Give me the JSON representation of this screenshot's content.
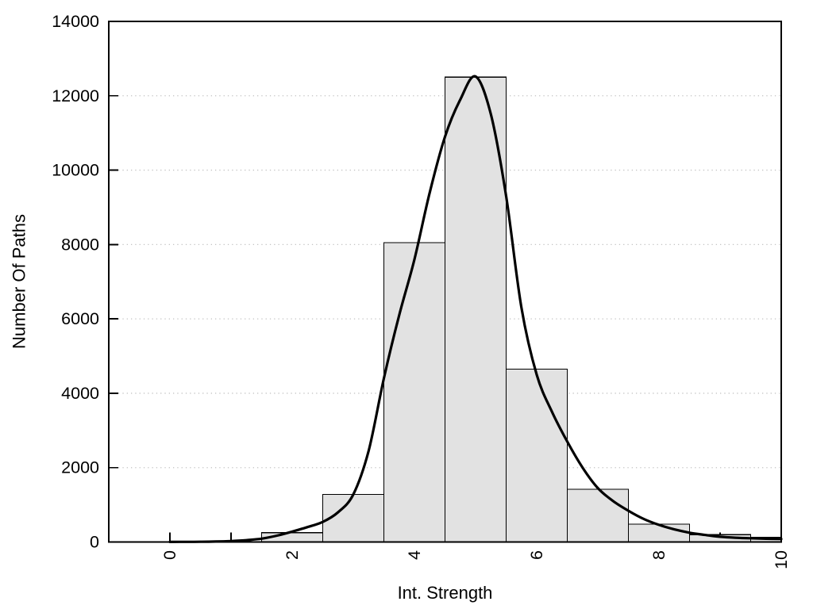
{
  "chart_data": {
    "type": "bar",
    "subtype": "histogram-with-density-curve",
    "title": "",
    "xlabel": "Int. Strength",
    "ylabel": "Number Of Paths",
    "xlim": [
      -1,
      10
    ],
    "ylim": [
      0,
      14000
    ],
    "x_major_ticks": [
      0,
      2,
      4,
      6,
      8,
      10
    ],
    "x_major_tick_labels": [
      "0",
      "2",
      "4",
      "6",
      "8",
      "10"
    ],
    "x_minor_ticks": [
      1,
      3,
      5,
      7,
      9
    ],
    "y_ticks": [
      0,
      2000,
      4000,
      6000,
      8000,
      10000,
      12000,
      14000
    ],
    "y_tick_labels": [
      "0",
      "2000",
      "4000",
      "6000",
      "8000",
      "10000",
      "12000",
      "14000"
    ],
    "grid_y_values": [
      2000,
      4000,
      6000,
      8000,
      10000,
      12000
    ],
    "grid_style": "dotted-horizontal",
    "legend": null,
    "bars": [
      {
        "x0": 1.5,
        "x1": 2.5,
        "count": 250
      },
      {
        "x0": 2.5,
        "x1": 3.5,
        "count": 1280
      },
      {
        "x0": 3.5,
        "x1": 4.5,
        "count": 8050
      },
      {
        "x0": 4.5,
        "x1": 5.5,
        "count": 12500
      },
      {
        "x0": 5.5,
        "x1": 6.5,
        "count": 4650
      },
      {
        "x0": 6.5,
        "x1": 7.5,
        "count": 1420
      },
      {
        "x0": 7.5,
        "x1": 8.5,
        "count": 480
      },
      {
        "x0": 8.5,
        "x1": 9.5,
        "count": 200
      },
      {
        "x0": 9.5,
        "x1": 10.0,
        "count": 130
      }
    ],
    "curve": {
      "name": "density-fit-curve",
      "points": [
        [
          0.0,
          3
        ],
        [
          0.25,
          4
        ],
        [
          0.5,
          6
        ],
        [
          0.75,
          12
        ],
        [
          1.0,
          25
        ],
        [
          1.25,
          50
        ],
        [
          1.5,
          90
        ],
        [
          1.75,
          170
        ],
        [
          2.0,
          280
        ],
        [
          2.25,
          400
        ],
        [
          2.5,
          540
        ],
        [
          2.75,
          800
        ],
        [
          3.0,
          1280
        ],
        [
          3.25,
          2450
        ],
        [
          3.5,
          4400
        ],
        [
          3.75,
          6100
        ],
        [
          4.0,
          7600
        ],
        [
          4.25,
          9400
        ],
        [
          4.5,
          10900
        ],
        [
          4.75,
          11900
        ],
        [
          5.0,
          12520
        ],
        [
          5.25,
          11500
        ],
        [
          5.5,
          9300
        ],
        [
          5.75,
          6300
        ],
        [
          6.0,
          4500
        ],
        [
          6.25,
          3500
        ],
        [
          6.5,
          2700
        ],
        [
          6.75,
          2000
        ],
        [
          7.0,
          1450
        ],
        [
          7.25,
          1100
        ],
        [
          7.5,
          840
        ],
        [
          7.75,
          620
        ],
        [
          8.0,
          460
        ],
        [
          8.25,
          340
        ],
        [
          8.5,
          250
        ],
        [
          8.75,
          190
        ],
        [
          9.0,
          140
        ],
        [
          9.25,
          115
        ],
        [
          9.5,
          100
        ],
        [
          9.75,
          88
        ],
        [
          10.0,
          80
        ]
      ]
    },
    "colors": {
      "background": "#ffffff",
      "bar_fill": "#e2e2e2",
      "bar_border": "#000000",
      "curve": "#000000",
      "grid": "#c3c3c3",
      "axis": "#000000",
      "text": "#000000"
    }
  }
}
